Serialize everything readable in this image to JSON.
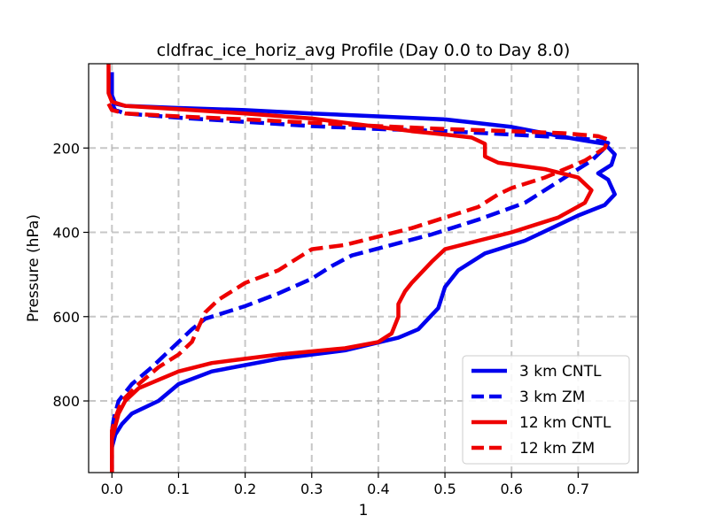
{
  "chart_data": {
    "type": "line",
    "title": "cldfrac_ice_horiz_avg Profile (Day 0.0 to Day 8.0)",
    "xlabel": "1",
    "ylabel": "Pressure (hPa)",
    "xlim": [
      -0.035,
      0.79
    ],
    "ylim": [
      970,
      0
    ],
    "y_inverted": true,
    "grid": true,
    "legend_position": "lower-right",
    "xticks": [
      0.0,
      0.1,
      0.2,
      0.3,
      0.4,
      0.5,
      0.6,
      0.7
    ],
    "xtick_labels": [
      "0.0",
      "0.1",
      "0.2",
      "0.3",
      "0.4",
      "0.5",
      "0.6",
      "0.7"
    ],
    "yticks": [
      200,
      400,
      600,
      800
    ],
    "ytick_labels": [
      "200",
      "400",
      "600",
      "800"
    ],
    "series": [
      {
        "name": "3 km CNTL",
        "color": "#0000ee",
        "style": "solid",
        "points": [
          [
            0.0,
            20
          ],
          [
            0.0,
            75
          ],
          [
            0.005,
            95
          ],
          [
            0.02,
            100
          ],
          [
            0.1,
            105
          ],
          [
            0.2,
            110
          ],
          [
            0.3,
            118
          ],
          [
            0.4,
            125
          ],
          [
            0.5,
            132
          ],
          [
            0.6,
            150
          ],
          [
            0.65,
            165
          ],
          [
            0.7,
            180
          ],
          [
            0.74,
            190
          ],
          [
            0.755,
            215
          ],
          [
            0.75,
            240
          ],
          [
            0.73,
            260
          ],
          [
            0.745,
            275
          ],
          [
            0.755,
            310
          ],
          [
            0.74,
            335
          ],
          [
            0.7,
            360
          ],
          [
            0.66,
            390
          ],
          [
            0.62,
            420
          ],
          [
            0.58,
            440
          ],
          [
            0.56,
            450
          ],
          [
            0.52,
            490
          ],
          [
            0.5,
            530
          ],
          [
            0.49,
            580
          ],
          [
            0.46,
            630
          ],
          [
            0.43,
            650
          ],
          [
            0.35,
            680
          ],
          [
            0.25,
            700
          ],
          [
            0.15,
            730
          ],
          [
            0.1,
            760
          ],
          [
            0.07,
            800
          ],
          [
            0.03,
            830
          ],
          [
            0.015,
            855
          ],
          [
            0.005,
            880
          ],
          [
            0.0,
            910
          ],
          [
            0.0,
            970
          ]
        ]
      },
      {
        "name": "3 km ZM",
        "color": "#0000ee",
        "style": "dashed",
        "points": [
          [
            0.0,
            95
          ],
          [
            0.005,
            110
          ],
          [
            0.02,
            118
          ],
          [
            0.1,
            128
          ],
          [
            0.2,
            138
          ],
          [
            0.3,
            148
          ],
          [
            0.4,
            155
          ],
          [
            0.5,
            160
          ],
          [
            0.6,
            168
          ],
          [
            0.68,
            175
          ],
          [
            0.72,
            180
          ],
          [
            0.745,
            188
          ],
          [
            0.74,
            200
          ],
          [
            0.72,
            230
          ],
          [
            0.68,
            270
          ],
          [
            0.62,
            330
          ],
          [
            0.55,
            370
          ],
          [
            0.48,
            405
          ],
          [
            0.42,
            430
          ],
          [
            0.36,
            455
          ],
          [
            0.33,
            480
          ],
          [
            0.3,
            510
          ],
          [
            0.25,
            545
          ],
          [
            0.2,
            575
          ],
          [
            0.14,
            605
          ],
          [
            0.12,
            630
          ],
          [
            0.1,
            660
          ],
          [
            0.08,
            690
          ],
          [
            0.06,
            720
          ],
          [
            0.03,
            760
          ],
          [
            0.01,
            800
          ],
          [
            0.003,
            840
          ],
          [
            0.0,
            870
          ],
          [
            0.0,
            970
          ]
        ]
      },
      {
        "name": "12 km CNTL",
        "color": "#ee0000",
        "style": "solid",
        "points": [
          [
            -0.005,
            0
          ],
          [
            -0.005,
            70
          ],
          [
            0.0,
            90
          ],
          [
            0.02,
            100
          ],
          [
            0.1,
            108
          ],
          [
            0.2,
            118
          ],
          [
            0.3,
            130
          ],
          [
            0.35,
            140
          ],
          [
            0.4,
            150
          ],
          [
            0.45,
            160
          ],
          [
            0.5,
            168
          ],
          [
            0.54,
            175
          ],
          [
            0.56,
            190
          ],
          [
            0.56,
            220
          ],
          [
            0.58,
            235
          ],
          [
            0.65,
            250
          ],
          [
            0.7,
            270
          ],
          [
            0.72,
            300
          ],
          [
            0.71,
            330
          ],
          [
            0.67,
            365
          ],
          [
            0.6,
            400
          ],
          [
            0.55,
            420
          ],
          [
            0.5,
            440
          ],
          [
            0.48,
            470
          ],
          [
            0.45,
            520
          ],
          [
            0.44,
            540
          ],
          [
            0.43,
            570
          ],
          [
            0.43,
            600
          ],
          [
            0.42,
            640
          ],
          [
            0.4,
            660
          ],
          [
            0.35,
            675
          ],
          [
            0.25,
            690
          ],
          [
            0.2,
            700
          ],
          [
            0.15,
            710
          ],
          [
            0.1,
            730
          ],
          [
            0.07,
            750
          ],
          [
            0.04,
            770
          ],
          [
            0.02,
            800
          ],
          [
            0.01,
            830
          ],
          [
            0.005,
            860
          ],
          [
            0.0,
            890
          ],
          [
            0.0,
            970
          ]
        ]
      },
      {
        "name": "12 km ZM",
        "color": "#ee0000",
        "style": "dashed",
        "points": [
          [
            -0.005,
            95
          ],
          [
            0.0,
            110
          ],
          [
            0.02,
            118
          ],
          [
            0.1,
            125
          ],
          [
            0.2,
            132
          ],
          [
            0.3,
            140
          ],
          [
            0.4,
            148
          ],
          [
            0.5,
            155
          ],
          [
            0.6,
            160
          ],
          [
            0.68,
            165
          ],
          [
            0.73,
            172
          ],
          [
            0.745,
            180
          ],
          [
            0.74,
            200
          ],
          [
            0.71,
            230
          ],
          [
            0.65,
            270
          ],
          [
            0.6,
            295
          ],
          [
            0.58,
            310
          ],
          [
            0.55,
            340
          ],
          [
            0.5,
            365
          ],
          [
            0.45,
            390
          ],
          [
            0.4,
            410
          ],
          [
            0.35,
            430
          ],
          [
            0.3,
            440
          ],
          [
            0.28,
            460
          ],
          [
            0.25,
            490
          ],
          [
            0.2,
            520
          ],
          [
            0.16,
            560
          ],
          [
            0.14,
            590
          ],
          [
            0.13,
            625
          ],
          [
            0.12,
            660
          ],
          [
            0.1,
            690
          ],
          [
            0.07,
            720
          ],
          [
            0.04,
            760
          ],
          [
            0.015,
            800
          ],
          [
            0.005,
            840
          ],
          [
            0.0,
            870
          ],
          [
            0.0,
            970
          ]
        ]
      }
    ]
  }
}
